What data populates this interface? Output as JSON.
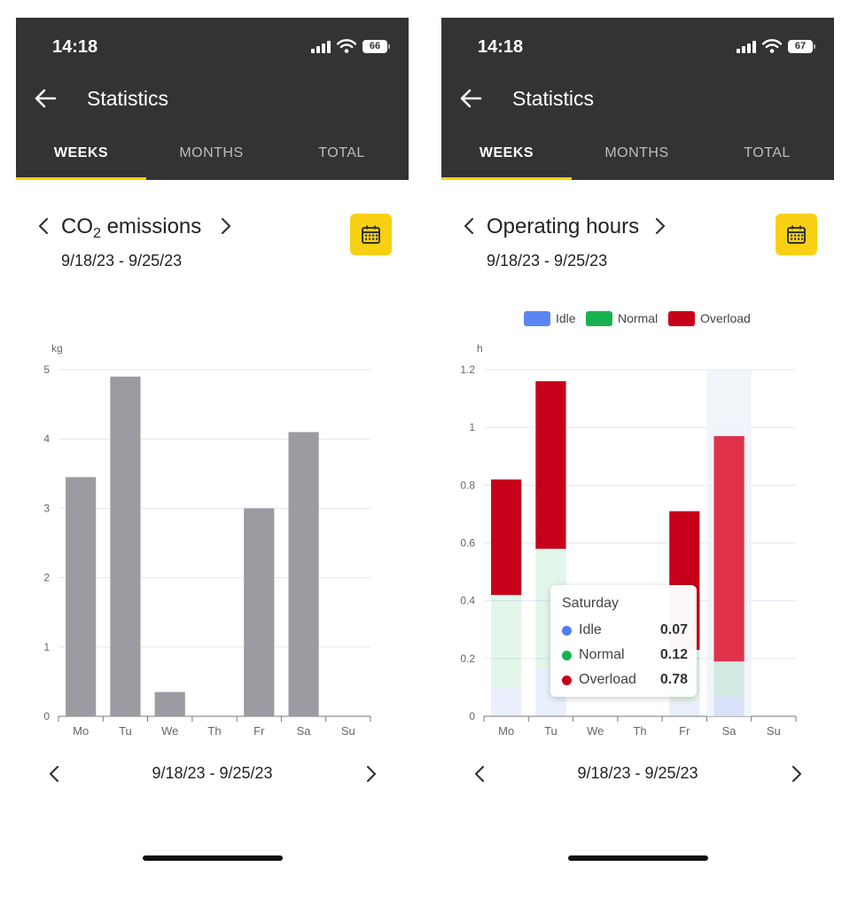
{
  "left": {
    "status": {
      "time": "14:18",
      "battery": "66"
    },
    "header": {
      "title": "Statistics"
    },
    "tabs": [
      {
        "label": "WEEKS",
        "active": true
      },
      {
        "label": "MONTHS",
        "active": false
      },
      {
        "label": "TOTAL",
        "active": false
      }
    ],
    "metric": {
      "title_main": "CO",
      "title_sub": "2",
      "title_rest": " emissions",
      "date_range": "9/18/23 - 9/25/23"
    },
    "pager": {
      "label": "9/18/23 - 9/25/23"
    },
    "chart_data": {
      "type": "bar",
      "ylabel": "kg",
      "categories": [
        "Mo",
        "Tu",
        "We",
        "Th",
        "Fr",
        "Sa",
        "Su"
      ],
      "values": [
        3.45,
        4.9,
        0.35,
        0,
        3.0,
        4.1,
        0
      ],
      "ylim": [
        0,
        5
      ],
      "yticks": [
        "0",
        "1",
        "2",
        "3",
        "4",
        "5"
      ],
      "grid": true,
      "color": "#9a9ca1"
    }
  },
  "right": {
    "status": {
      "time": "14:18",
      "battery": "67"
    },
    "header": {
      "title": "Statistics"
    },
    "tabs": [
      {
        "label": "WEEKS",
        "active": true
      },
      {
        "label": "MONTHS",
        "active": false
      },
      {
        "label": "TOTAL",
        "active": false
      }
    ],
    "metric": {
      "title": "Operating hours",
      "date_range": "9/18/23 - 9/25/23"
    },
    "pager": {
      "label": "9/18/23 - 9/25/23"
    },
    "tooltip": {
      "title": "Saturday",
      "rows": [
        {
          "label": "Idle",
          "value": "0.07",
          "color": "#4f7ff0"
        },
        {
          "label": "Normal",
          "value": "0.12",
          "color": "#18b14f"
        },
        {
          "label": "Overload",
          "value": "0.78",
          "color": "#c8001a"
        }
      ]
    },
    "chart_data": {
      "type": "bar",
      "stacked": true,
      "ylabel": "h",
      "categories": [
        "Mo",
        "Tu",
        "We",
        "Th",
        "Fr",
        "Sa",
        "Su"
      ],
      "ylim": [
        0,
        1.2
      ],
      "yticks": [
        "0",
        "0.2",
        "0.4",
        "0.6",
        "0.8",
        "1",
        "1.2"
      ],
      "grid": true,
      "legend_position": "top",
      "highlighted_category": "Sa",
      "series": [
        {
          "name": "Idle",
          "color": "#4f7ff0",
          "values": [
            0.1,
            0.17,
            0,
            0,
            0.05,
            0.07,
            0
          ]
        },
        {
          "name": "Normal",
          "color": "#18b14f",
          "values": [
            0.32,
            0.41,
            0,
            0,
            0.18,
            0.12,
            0
          ]
        },
        {
          "name": "Overload",
          "color": "#c8001a",
          "values": [
            0.4,
            0.58,
            0,
            0,
            0.48,
            0.78,
            0
          ]
        }
      ]
    }
  }
}
